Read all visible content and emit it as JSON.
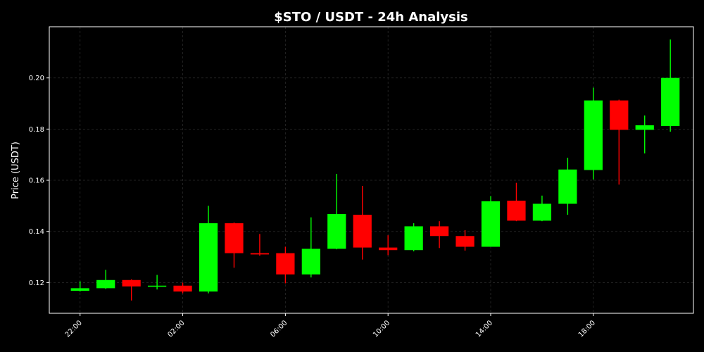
{
  "chart_data": {
    "type": "candlestick",
    "title": "$STO / USDT - 24h Analysis",
    "xlabel": "",
    "ylabel": "Price (USDT)",
    "x_range_hours": [
      20.8,
      45.9
    ],
    "ylim": [
      0.108,
      0.22
    ],
    "y_ticks": [
      0.12,
      0.14,
      0.16,
      0.18,
      0.2
    ],
    "y_tick_labels": [
      "0.12",
      "0.14",
      "0.16",
      "0.18",
      "0.20"
    ],
    "x_ticks_hours": [
      22,
      26,
      30,
      34,
      38,
      42
    ],
    "x_tick_labels": [
      "22:00",
      "02:00",
      "06:00",
      "10:00",
      "14:00",
      "18:00"
    ],
    "grid": true,
    "up_color": "#00ff00",
    "down_color": "#ff0000",
    "candles": [
      {
        "t": 22,
        "open": 0.1168,
        "high": 0.1205,
        "low": 0.1165,
        "close": 0.1178
      },
      {
        "t": 23,
        "open": 0.1178,
        "high": 0.125,
        "low": 0.1175,
        "close": 0.121
      },
      {
        "t": 24,
        "open": 0.121,
        "high": 0.1213,
        "low": 0.113,
        "close": 0.1185
      },
      {
        "t": 25,
        "open": 0.1185,
        "high": 0.123,
        "low": 0.1173,
        "close": 0.1188
      },
      {
        "t": 26,
        "open": 0.1188,
        "high": 0.12,
        "low": 0.1158,
        "close": 0.1165
      },
      {
        "t": 27,
        "open": 0.1165,
        "high": 0.15,
        "low": 0.1158,
        "close": 0.1432
      },
      {
        "t": 28,
        "open": 0.1432,
        "high": 0.1435,
        "low": 0.1258,
        "close": 0.1315
      },
      {
        "t": 29,
        "open": 0.1315,
        "high": 0.139,
        "low": 0.1305,
        "close": 0.131
      },
      {
        "t": 30,
        "open": 0.1315,
        "high": 0.134,
        "low": 0.1197,
        "close": 0.1232
      },
      {
        "t": 31,
        "open": 0.1232,
        "high": 0.1455,
        "low": 0.122,
        "close": 0.1332
      },
      {
        "t": 32,
        "open": 0.1332,
        "high": 0.1625,
        "low": 0.133,
        "close": 0.1468
      },
      {
        "t": 33,
        "open": 0.1465,
        "high": 0.1578,
        "low": 0.129,
        "close": 0.1337
      },
      {
        "t": 34,
        "open": 0.1337,
        "high": 0.1385,
        "low": 0.1307,
        "close": 0.1327
      },
      {
        "t": 35,
        "open": 0.1327,
        "high": 0.1432,
        "low": 0.1322,
        "close": 0.142
      },
      {
        "t": 36,
        "open": 0.142,
        "high": 0.144,
        "low": 0.1335,
        "close": 0.1382
      },
      {
        "t": 37,
        "open": 0.1382,
        "high": 0.1405,
        "low": 0.1325,
        "close": 0.134
      },
      {
        "t": 38,
        "open": 0.134,
        "high": 0.1538,
        "low": 0.134,
        "close": 0.1518
      },
      {
        "t": 39,
        "open": 0.152,
        "high": 0.159,
        "low": 0.144,
        "close": 0.1442
      },
      {
        "t": 40,
        "open": 0.1442,
        "high": 0.154,
        "low": 0.144,
        "close": 0.1508
      },
      {
        "t": 41,
        "open": 0.1508,
        "high": 0.1688,
        "low": 0.1465,
        "close": 0.1642
      },
      {
        "t": 42,
        "open": 0.164,
        "high": 0.1962,
        "low": 0.1603,
        "close": 0.1912
      },
      {
        "t": 43,
        "open": 0.1912,
        "high": 0.1915,
        "low": 0.1583,
        "close": 0.1797
      },
      {
        "t": 44,
        "open": 0.1797,
        "high": 0.1853,
        "low": 0.1705,
        "close": 0.1815
      },
      {
        "t": 45,
        "open": 0.1812,
        "high": 0.215,
        "low": 0.179,
        "close": 0.2
      }
    ]
  }
}
